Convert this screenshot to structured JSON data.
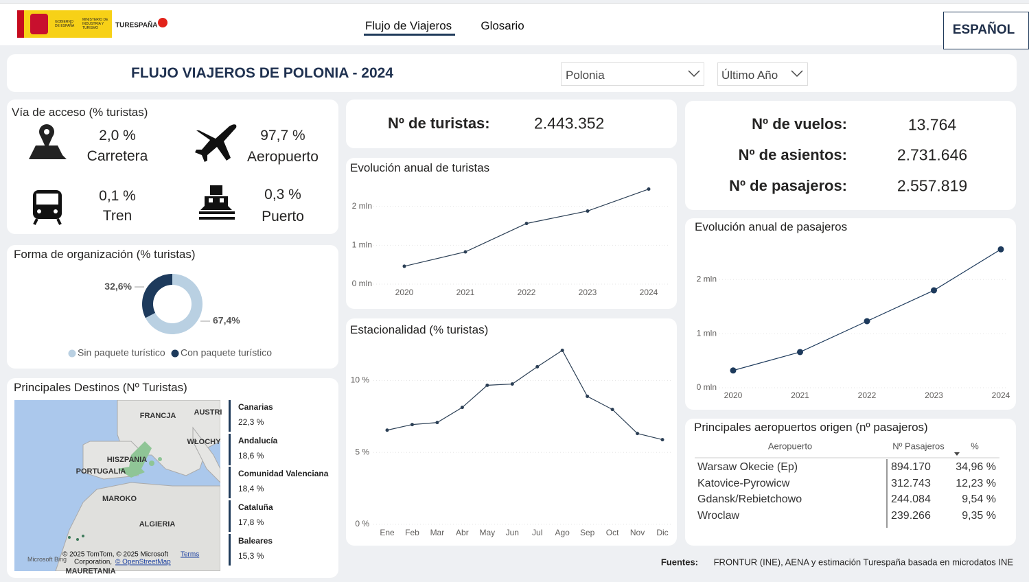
{
  "header": {
    "logo_gov": "GOBIERNO DE ESPAÑA",
    "logo_ministry": "MINISTERIO DE INDUSTRIA Y TURISMO",
    "logo_brand": "TURESPAÑA",
    "nav": [
      "Flujo de Viajeros",
      "Glosario"
    ],
    "language": "ESPAÑOL"
  },
  "title_bar": {
    "title": "FLUJO VIAJEROS DE POLONIA - 2024",
    "filters": [
      "Polonia",
      "Último Año"
    ]
  },
  "access": {
    "title": "Vía de acceso (% turistas)",
    "items": [
      {
        "value": "2,0 %",
        "label": "Carretera"
      },
      {
        "value": "97,7 %",
        "label": "Aeropuerto"
      },
      {
        "value": "0,1 %",
        "label": "Tren"
      },
      {
        "value": "0,3 %",
        "label": "Puerto"
      }
    ]
  },
  "kpis": [
    {
      "label": "Nº de turistas:",
      "value": "2.443.352"
    },
    {
      "label": "Nº de vuelos:",
      "value": "13.764"
    },
    {
      "label": "Nº de asientos:",
      "value": "2.731.646"
    },
    {
      "label": "Nº de pasajeros:",
      "value": "2.557.819"
    }
  ],
  "destinations": {
    "title": "Principales Destinos (Nº Turistas)",
    "map_labels": [
      "FRANCJA",
      "AUSTRI",
      "WŁOCHY",
      "HISZPANIA",
      "PORTUGALIA",
      "MAROKO",
      "ALGIERIA",
      "MAURETANIA"
    ],
    "map_brand": "Microsoft Bing",
    "attribution": [
      "© 2025 TomTom, © 2025 Microsoft",
      "Terms",
      "Corporation,",
      "© OpenStreetMap"
    ],
    "items": [
      {
        "name": "Canarias",
        "value": "22,3 %"
      },
      {
        "name": "Andalucía",
        "value": "18,6 %"
      },
      {
        "name": "Comunidad Valenciana",
        "value": "18,4 %"
      },
      {
        "name": "Cataluña",
        "value": "17,8 %"
      },
      {
        "name": "Baleares",
        "value": "15,3 %"
      }
    ]
  },
  "airports": {
    "title": "Principales aeropuertos origen (nº pasajeros)",
    "columns": [
      "Aeropuerto",
      "Nº Pasajeros",
      "%"
    ],
    "rows": [
      [
        "Warsaw Okecie (Ep)",
        "894.170",
        "34,96 %"
      ],
      [
        "Katovice-Pyrowicw",
        "312.743",
        "12,23 %"
      ],
      [
        "Gdansk/Rebietchowo",
        "244.084",
        "9,54 %"
      ],
      [
        "Wroclaw",
        "239.266",
        "9,35 %"
      ]
    ]
  },
  "footer": {
    "label": "Fuentes:",
    "text": "FRONTUR (INE), AENA y estimación Turespaña basada en microdatos INE"
  },
  "chart_data": [
    {
      "type": "line",
      "title": "Evolución anual de turistas",
      "categories": [
        "2020",
        "2021",
        "2022",
        "2023",
        "2024"
      ],
      "values": [
        460000,
        830000,
        1560000,
        1880000,
        2443352
      ],
      "color": "#2b3f55",
      "ylim": [
        0,
        2700000
      ],
      "yticks": [
        {
          "value": 0,
          "label": "0 mln"
        },
        {
          "value": 1000000,
          "label": "1 mln"
        },
        {
          "value": 2000000,
          "label": "2 mln"
        }
      ],
      "grid": true
    },
    {
      "type": "line",
      "title": "Estacionalidad (% turistas)",
      "categories": [
        "Ene",
        "Feb",
        "Mar",
        "Abr",
        "May",
        "Jun",
        "Jul",
        "Ago",
        "Sep",
        "Oct",
        "Nov",
        "Dic"
      ],
      "values": [
        6.55,
        6.94,
        7.08,
        8.13,
        9.67,
        9.76,
        10.96,
        12.1,
        8.9,
        7.99,
        6.32,
        5.89
      ],
      "color": "#2b3f55",
      "ylim": [
        0,
        12.6
      ],
      "yticks": [
        {
          "value": 0,
          "label": "0 %"
        },
        {
          "value": 5,
          "label": "5 %"
        },
        {
          "value": 10,
          "label": "10 %"
        }
      ],
      "grid": true
    },
    {
      "type": "line",
      "title": "Evolución anual de pasajeros",
      "categories": [
        "2020",
        "2021",
        "2022",
        "2023",
        "2024"
      ],
      "values": [
        320000,
        660000,
        1230000,
        1800000,
        2557819
      ],
      "color": "#1d3a5c",
      "ylim": [
        0,
        2650000
      ],
      "yticks": [
        {
          "value": 0,
          "label": "0 mln"
        },
        {
          "value": 1000000,
          "label": "1 mln"
        },
        {
          "value": 2000000,
          "label": "2 mln"
        }
      ],
      "grid": true
    },
    {
      "type": "pie",
      "title": "Forma de organización (% turistas)",
      "categories": [
        "Sin paquete turístico",
        "Con paquete turístico"
      ],
      "values": [
        67.4,
        32.6
      ],
      "value_labels": [
        "67,4%",
        "32,6%"
      ],
      "colors": [
        "#b9d0e2",
        "#1d3a5c"
      ]
    }
  ]
}
